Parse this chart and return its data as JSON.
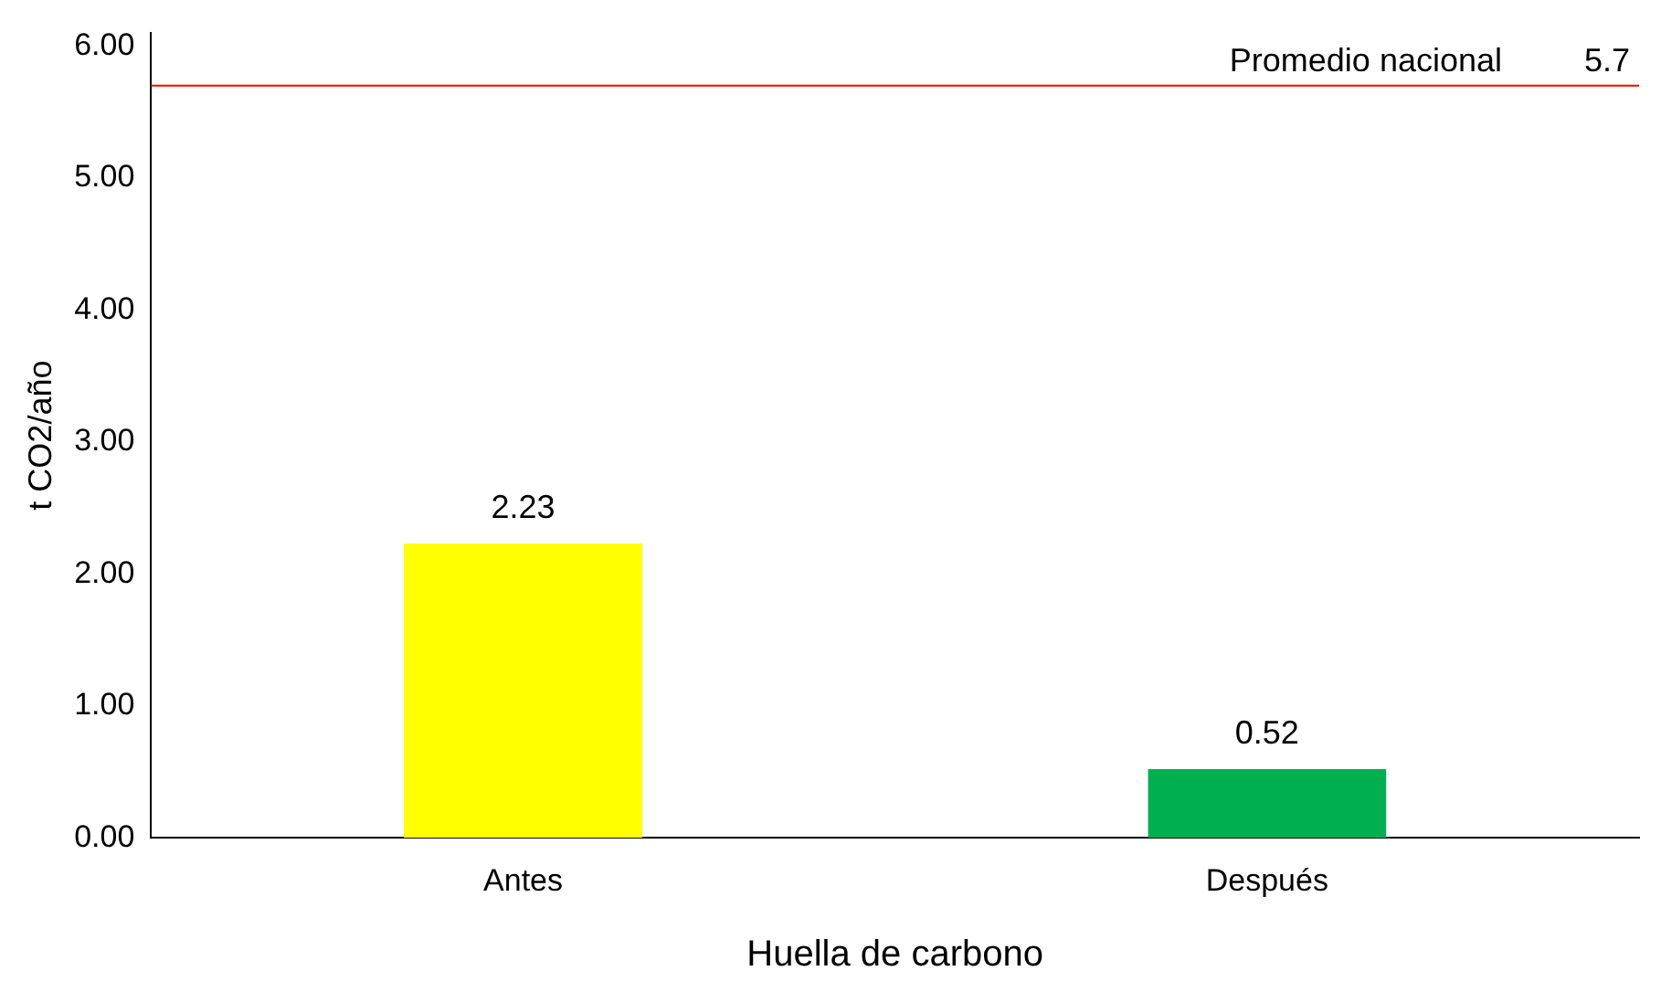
{
  "chart_data": {
    "type": "bar",
    "xlabel": "Huella de carbono",
    "ylabel": "t CO2/año",
    "categories": [
      "Antes",
      "Después"
    ],
    "values": [
      2.23,
      0.52
    ],
    "colors": [
      "#ffff00",
      "#00b050"
    ],
    "ylim": [
      0,
      6.1
    ],
    "yticks": [
      {
        "value": 0,
        "label": "0.00"
      },
      {
        "value": 1,
        "label": "1.00"
      },
      {
        "value": 2,
        "label": "2.00"
      },
      {
        "value": 3,
        "label": "3.00"
      },
      {
        "value": 4,
        "label": "4.00"
      },
      {
        "value": 5,
        "label": "5.00"
      },
      {
        "value": 6,
        "label": "6.00"
      }
    ],
    "ref_lines": [
      {
        "axis": "y",
        "value": 5.7,
        "label": "Promedio nacional",
        "color": "#ff0000"
      }
    ],
    "annotations": [
      {
        "text": "5.7",
        "y": 5.7
      }
    ],
    "data_labels": true,
    "grid": false,
    "legend": false
  }
}
